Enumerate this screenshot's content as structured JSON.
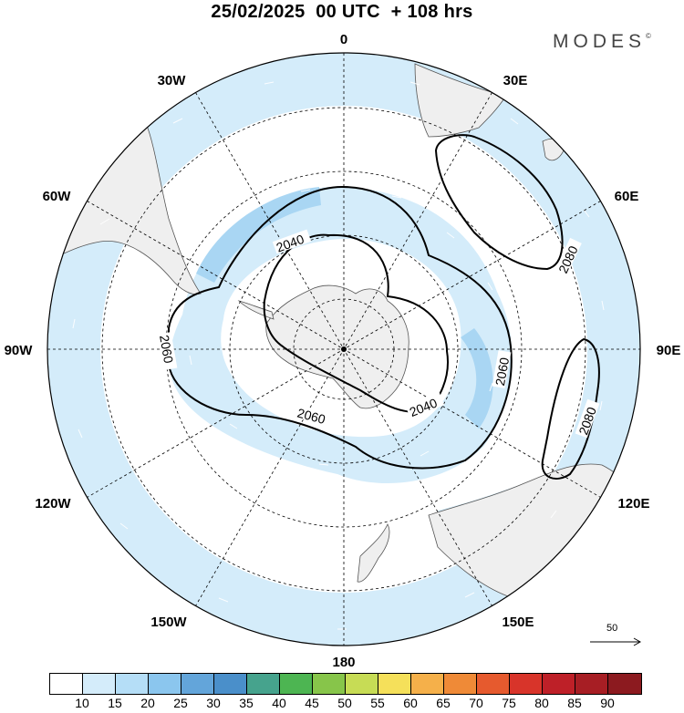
{
  "header": {
    "title": "25/02/2025  00 UTC  + 108 hrs",
    "brand": "MODES",
    "brand_mark": "©"
  },
  "map": {
    "projection": "polar stereographic, south pole centered",
    "longitude_labels": {
      "top": "0",
      "upper_left": "30W",
      "upper_right": "30E",
      "left_upper": "60W",
      "right_upper": "60E",
      "left": "90W",
      "right": "90E",
      "left_lower": "120W",
      "right_lower": "120E",
      "lower_left": "150W",
      "lower_right": "150E",
      "bottom": "180"
    },
    "contour_labels": [
      "2040",
      "2040",
      "2060",
      "2060",
      "2060",
      "2080",
      "2080"
    ],
    "reference_vector": "50",
    "colors": {
      "land": "#efefef",
      "ocean": "#ffffff",
      "wind_light": "#d4ecfa",
      "wind_mid": "#a9d6f3"
    }
  },
  "legend": {
    "ticks": [
      "10",
      "15",
      "20",
      "25",
      "30",
      "35",
      "40",
      "45",
      "50",
      "55",
      "60",
      "65",
      "70",
      "75",
      "80",
      "85",
      "90"
    ],
    "colors": [
      "#ffffff",
      "#d4ecfa",
      "#b5def7",
      "#8bc6ee",
      "#63a5da",
      "#4a8fca",
      "#46a38d",
      "#4db552",
      "#87c54a",
      "#c7dc55",
      "#f5e05a",
      "#f5b04a",
      "#ef8a37",
      "#e65a2e",
      "#d8342a",
      "#be2028",
      "#a71e24",
      "#8c1a1f"
    ]
  }
}
